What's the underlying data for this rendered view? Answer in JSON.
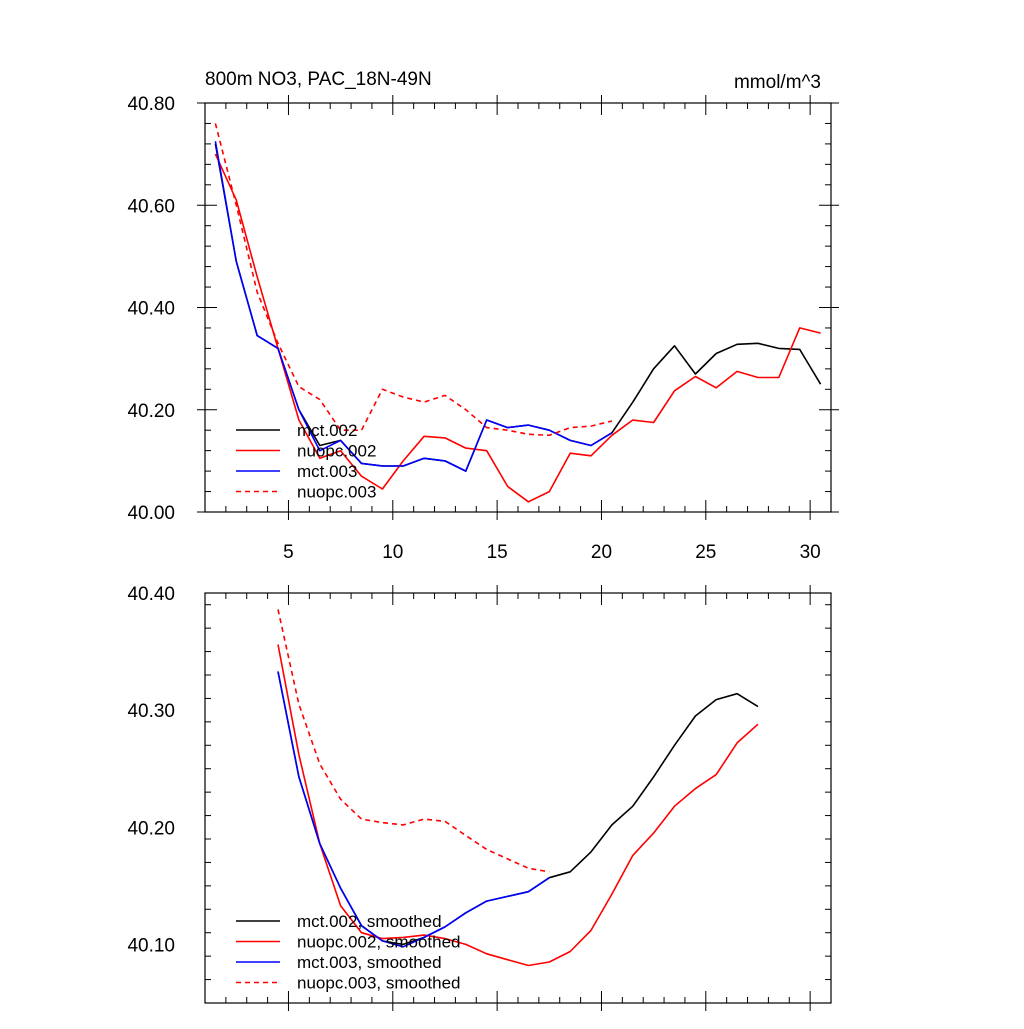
{
  "chart_data": [
    {
      "type": "line",
      "title": "800m NO3, PAC_18N-49N",
      "units": "mmol/m^3",
      "xlim": [
        1,
        31
      ],
      "ylim": [
        40.0,
        40.8
      ],
      "xticks": [
        5,
        10,
        15,
        20,
        25,
        30
      ],
      "yticks": [
        40.0,
        40.2,
        40.4,
        40.6,
        40.8
      ],
      "series": [
        {
          "name": "mct.002",
          "color": "#000000",
          "dash": false,
          "x": [
            1.5,
            2.5,
            3.5,
            4.5,
            5.5,
            6.5,
            7.5,
            8.5,
            9.5,
            10.5,
            11.5,
            12.5,
            13.5,
            14.5,
            15.5,
            16.5,
            17.5,
            18.5,
            19.5,
            20.5,
            21.5,
            22.5,
            23.5,
            24.5,
            25.5,
            26.5,
            27.5,
            28.5,
            29.5,
            30.5
          ],
          "y": [
            40.72,
            40.49,
            40.345,
            40.32,
            40.2,
            40.13,
            40.14,
            40.095,
            40.09,
            40.09,
            40.105,
            40.1,
            40.08,
            40.18,
            40.165,
            40.17,
            40.16,
            40.14,
            40.13,
            40.155,
            40.215,
            40.28,
            40.325,
            40.27,
            40.31,
            40.328,
            40.33,
            40.32,
            40.318,
            40.25
          ]
        },
        {
          "name": "nuopc.002",
          "color": "#ff0000",
          "dash": false,
          "x": [
            1.5,
            2.5,
            3.5,
            4.5,
            5.5,
            6.5,
            7.5,
            8.5,
            9.5,
            10.5,
            11.5,
            12.5,
            13.5,
            14.5,
            15.5,
            16.5,
            17.5,
            18.5,
            19.5,
            20.5,
            21.5,
            22.5,
            23.5,
            24.5,
            25.5,
            26.5,
            27.5,
            28.5,
            29.5,
            30.5
          ],
          "y": [
            40.7,
            40.61,
            40.46,
            40.32,
            40.18,
            40.105,
            40.12,
            40.07,
            40.045,
            40.1,
            40.148,
            40.145,
            40.125,
            40.12,
            40.05,
            40.02,
            40.04,
            40.115,
            40.11,
            40.15,
            40.18,
            40.175,
            40.237,
            40.265,
            40.243,
            40.275,
            40.263,
            40.263,
            40.36,
            40.35
          ]
        },
        {
          "name": "mct.003",
          "color": "#0000ff",
          "dash": false,
          "x": [
            1.5,
            2.5,
            3.5,
            4.5,
            5.5,
            6.5,
            7.5,
            8.5,
            9.5,
            10.5,
            11.5,
            12.5,
            13.5,
            14.5,
            15.5,
            16.5,
            17.5,
            18.5,
            19.5,
            20.5
          ],
          "y": [
            40.725,
            40.49,
            40.345,
            40.32,
            40.2,
            40.12,
            40.14,
            40.095,
            40.09,
            40.09,
            40.105,
            40.1,
            40.08,
            40.18,
            40.165,
            40.17,
            40.16,
            40.14,
            40.13,
            40.155
          ]
        },
        {
          "name": "nuopc.003",
          "color": "#ff0000",
          "dash": true,
          "x": [
            1.5,
            2.5,
            3.5,
            4.5,
            5.5,
            6.5,
            7.5,
            8.5,
            9.5,
            10.5,
            11.5,
            12.5,
            13.5,
            14.5,
            15.5,
            16.5,
            17.5,
            18.5,
            19.5,
            20.5
          ],
          "y": [
            40.76,
            40.6,
            40.43,
            40.33,
            40.245,
            40.22,
            40.16,
            40.16,
            40.24,
            40.225,
            40.215,
            40.228,
            40.2,
            40.165,
            40.16,
            40.152,
            40.15,
            40.165,
            40.168,
            40.178
          ]
        }
      ]
    },
    {
      "type": "line",
      "title": "",
      "xlim": [
        1,
        31
      ],
      "ylim": [
        40.05,
        40.4
      ],
      "xticks": [
        5,
        10,
        15,
        20,
        25,
        30
      ],
      "yticks": [
        40.1,
        40.2,
        40.3,
        40.4
      ],
      "series": [
        {
          "name": "mct.002, smoothed",
          "color": "#000000",
          "dash": false,
          "x": [
            4.5,
            5.5,
            6.5,
            7.5,
            8.5,
            9.5,
            10.5,
            11.5,
            12.5,
            13.5,
            14.5,
            15.5,
            16.5,
            17.5,
            18.5,
            19.5,
            20.5,
            21.5,
            22.5,
            23.5,
            24.5,
            25.5,
            26.5,
            27.5
          ],
          "y": [
            40.333,
            40.243,
            40.186,
            40.148,
            40.116,
            40.103,
            40.1,
            40.106,
            40.115,
            40.127,
            40.137,
            40.141,
            40.145,
            40.157,
            40.162,
            40.179,
            40.202,
            40.218,
            40.243,
            40.27,
            40.295,
            40.309,
            40.314,
            40.303
          ]
        },
        {
          "name": "nuopc.002, smoothed",
          "color": "#ff0000",
          "dash": false,
          "x": [
            4.5,
            5.5,
            6.5,
            7.5,
            8.5,
            9.5,
            10.5,
            11.5,
            12.5,
            13.5,
            14.5,
            15.5,
            16.5,
            17.5,
            18.5,
            19.5,
            20.5,
            21.5,
            22.5,
            23.5,
            24.5,
            25.5,
            26.5,
            27.5
          ],
          "y": [
            40.356,
            40.262,
            40.186,
            40.133,
            40.11,
            40.105,
            40.106,
            40.108,
            40.105,
            40.1,
            40.092,
            40.087,
            40.082,
            40.085,
            40.094,
            40.112,
            40.143,
            40.176,
            40.195,
            40.218,
            40.233,
            40.245,
            40.272,
            40.288
          ]
        },
        {
          "name": "mct.003, smoothed",
          "color": "#0000ff",
          "dash": false,
          "x": [
            4.5,
            5.5,
            6.5,
            7.5,
            8.5,
            9.5,
            10.5,
            11.5,
            12.5,
            13.5,
            14.5,
            15.5,
            16.5,
            17.5
          ],
          "y": [
            40.333,
            40.243,
            40.186,
            40.148,
            40.116,
            40.103,
            40.098,
            40.106,
            40.115,
            40.127,
            40.137,
            40.141,
            40.145,
            40.157
          ]
        },
        {
          "name": "nuopc.003, smoothed",
          "color": "#ff0000",
          "dash": true,
          "x": [
            4.5,
            5.5,
            6.5,
            7.5,
            8.5,
            9.5,
            10.5,
            11.5,
            12.5,
            13.5,
            14.5,
            15.5,
            16.5,
            17.5
          ],
          "y": [
            40.386,
            40.305,
            40.254,
            40.224,
            40.207,
            40.204,
            40.202,
            40.207,
            40.205,
            40.193,
            40.181,
            40.173,
            40.165,
            40.162
          ]
        }
      ]
    }
  ]
}
